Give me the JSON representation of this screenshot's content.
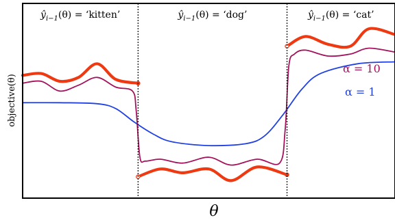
{
  "chart_data": {
    "type": "line",
    "title": "",
    "xlabel": "θ",
    "ylabel": "objective(θ)",
    "xlim": [
      0,
      10
    ],
    "ylim": [
      0,
      10
    ],
    "grid": false,
    "regions": [
      {
        "label_prefix": "ŷ",
        "label_sub": "i−1",
        "label_suffix": "(θ) = ‘kitten’",
        "x_start": 0,
        "x_end": 3.1
      },
      {
        "label_prefix": "ŷ",
        "label_sub": "i−1",
        "label_suffix": "(θ) = ‘dog’",
        "x_start": 3.1,
        "x_end": 7.1
      },
      {
        "label_prefix": "ŷ",
        "label_sub": "i−1",
        "label_suffix": "(θ) = ‘cat’",
        "x_start": 7.1,
        "x_end": 10
      }
    ],
    "boundaries": [
      3.1,
      7.1
    ],
    "series": [
      {
        "key": "hard",
        "color": "#ee3a12",
        "segments": [
          {
            "x": [
              0,
              0.5,
              1.0,
              1.5,
              2.0,
              2.5,
              3.1
            ],
            "y": [
              6.3,
              6.4,
              6.0,
              6.2,
              6.9,
              6.1,
              5.9
            ]
          },
          {
            "x": [
              3.1,
              3.7,
              4.3,
              5.0,
              5.6,
              6.3,
              7.1
            ],
            "y": [
              1.1,
              1.5,
              1.3,
              1.5,
              0.9,
              1.6,
              1.2
            ]
          },
          {
            "x": [
              7.1,
              7.6,
              8.2,
              8.8,
              9.3,
              10.0
            ],
            "y": [
              7.8,
              8.3,
              7.9,
              7.8,
              8.7,
              8.4
            ]
          }
        ]
      },
      {
        "key": "alpha10",
        "name": "α = 10",
        "color": "#a3115b",
        "x": [
          0,
          0.5,
          1.0,
          1.5,
          2.0,
          2.5,
          2.95,
          3.05,
          3.15,
          3.3,
          3.7,
          4.3,
          5.0,
          5.6,
          6.3,
          6.9,
          7.05,
          7.15,
          7.3,
          7.6,
          8.2,
          8.8,
          9.3,
          10.0
        ],
        "y": [
          5.9,
          6.0,
          5.5,
          5.8,
          6.2,
          5.7,
          5.5,
          4.5,
          2.1,
          1.9,
          2.0,
          1.8,
          2.1,
          1.7,
          2.0,
          1.8,
          3.5,
          6.8,
          7.4,
          7.6,
          7.3,
          7.4,
          7.7,
          7.5
        ]
      },
      {
        "key": "alpha1",
        "name": "α = 1",
        "color": "#2040e0",
        "x": [
          0,
          1.0,
          2.0,
          2.5,
          3.0,
          3.5,
          4.0,
          5.0,
          6.0,
          6.5,
          7.0,
          7.5,
          8.0,
          9.0,
          10.0
        ],
        "y": [
          4.9,
          4.9,
          4.85,
          4.6,
          3.9,
          3.3,
          2.9,
          2.7,
          2.8,
          3.2,
          4.3,
          5.6,
          6.4,
          6.9,
          7.0
        ]
      }
    ],
    "annotations": [
      {
        "series": "alpha10",
        "text": "α = 10"
      },
      {
        "series": "alpha1",
        "text": "α = 1"
      }
    ]
  }
}
